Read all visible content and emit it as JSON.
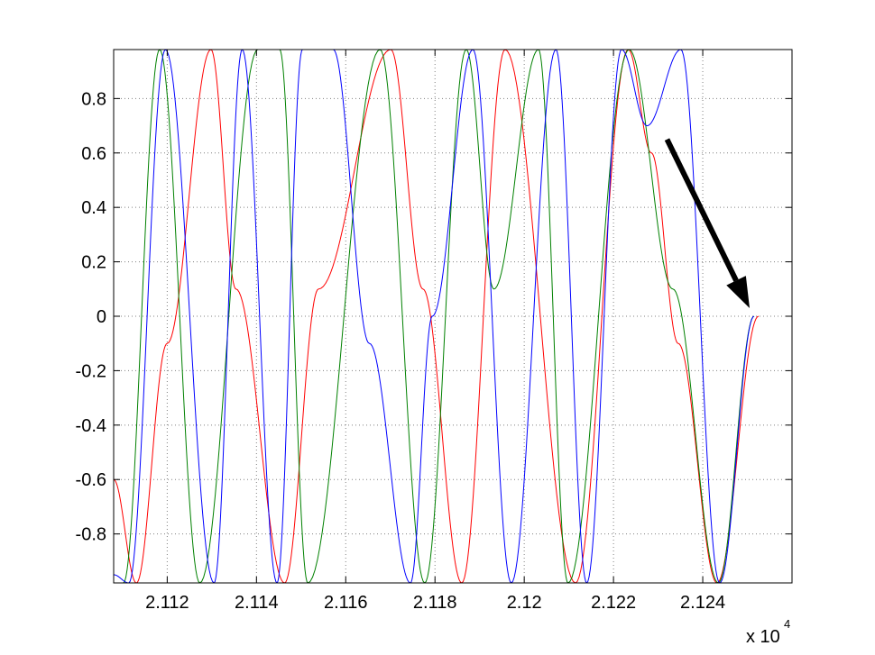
{
  "chart_data": {
    "type": "line",
    "title": "",
    "xlabel": "",
    "ylabel": "",
    "x_multiplier_label": "x 10",
    "x_multiplier_exponent": "4",
    "xlim": [
      21108,
      21260
    ],
    "ylim": [
      -0.98,
      0.98
    ],
    "grid": true,
    "x_ticks": [
      21120,
      21140,
      21160,
      21180,
      21200,
      21220,
      21240
    ],
    "x_tick_labels": [
      "2.112",
      "2.114",
      "2.116",
      "2.118",
      "2.12",
      "2.122",
      "2.124"
    ],
    "y_ticks": [
      -0.8,
      -0.6,
      -0.4,
      -0.2,
      0,
      0.2,
      0.4,
      0.6,
      0.8
    ],
    "y_tick_labels": [
      "-0.8",
      "-0.6",
      "-0.4",
      "-0.2",
      "0",
      "0.2",
      "0.4",
      "0.6",
      "0.8"
    ],
    "series": [
      {
        "color": "#ff0000",
        "x": [
          21108.0,
          21113.1,
          21120.0,
          21129.8,
          21135.4,
          21146.3,
          21153.9,
          21170.1,
          21177.3,
          21186.0,
          21195.7,
          21211.5,
          21223.3,
          21228.5,
          21234.5,
          21243.2,
          21252.5
        ],
        "y": [
          -0.6,
          -0.98,
          -0.1,
          0.98,
          0.1,
          -0.98,
          0.1,
          0.98,
          0.1,
          -0.98,
          0.98,
          -0.98,
          0.98,
          0.6,
          -0.1,
          -0.98,
          0.0
        ]
      },
      {
        "color": "#008000",
        "x": [
          21110.2,
          21118.3,
          21127.3,
          21140.3,
          21145.2,
          21151.5,
          21167.7,
          21177.7,
          21187.0,
          21193.2,
          21203.2,
          21209.8,
          21223.5,
          21233.3,
          21243.5,
          21251.5
        ],
        "y": [
          -0.98,
          0.98,
          -0.98,
          0.98,
          0.98,
          -0.98,
          0.98,
          -0.98,
          0.98,
          0.1,
          0.98,
          -0.98,
          0.98,
          0.1,
          -0.98,
          0.0
        ]
      },
      {
        "color": "#0000ff",
        "x": [
          21108.0,
          21111.4,
          21119.6,
          21130.5,
          21136.8,
          21144.6,
          21150.3,
          21157.2,
          21165.3,
          21174.5,
          21179.4,
          21188.5,
          21197.1,
          21207.1,
          21214.0,
          21221.8,
          21227.5,
          21235.1,
          21243.8,
          21251.5
        ],
        "y": [
          -0.95,
          -0.98,
          0.98,
          -0.98,
          0.98,
          -0.98,
          0.98,
          0.98,
          -0.1,
          -0.98,
          0.0,
          0.98,
          -0.98,
          0.98,
          -0.98,
          0.98,
          0.7,
          0.98,
          -0.98,
          0.0
        ]
      }
    ],
    "annotations": [
      {
        "type": "arrow",
        "color": "#000000",
        "from": [
          21232.0,
          0.65
        ],
        "to": [
          21250.5,
          0.03
        ]
      }
    ]
  }
}
